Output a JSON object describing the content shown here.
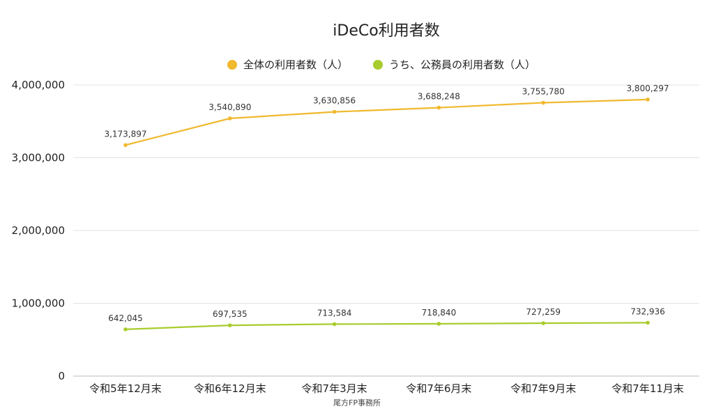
{
  "chart_data": {
    "type": "line",
    "title": "iDeCo利用者数",
    "categories": [
      "令和5年12月末",
      "令和6年12月末",
      "令和7年3月末",
      "令和7年6月末",
      "令和7年9月末",
      "令和7年11月末"
    ],
    "series": [
      {
        "name": "全体の利用者数（人）",
        "color": "#f0b92e",
        "values": [
          3173897,
          3540890,
          3630856,
          3688248,
          3755780,
          3800297
        ],
        "labels": [
          "3,173,897",
          "3,540,890",
          "3,630,856",
          "3,688,248",
          "3,755,780",
          "3,800,297"
        ]
      },
      {
        "name": "うち、公務員の利用者数（人）",
        "color": "#a8cc2c",
        "values": [
          642045,
          697535,
          713584,
          718840,
          727259,
          732936
        ],
        "labels": [
          "642,045",
          "697,535",
          "713,584",
          "718,840",
          "727,259",
          "732,936"
        ]
      }
    ],
    "ylim": [
      0,
      4000000
    ],
    "yticks": [
      0,
      1000000,
      2000000,
      3000000,
      4000000
    ],
    "ytick_labels": [
      "0",
      "1,000,000",
      "2,000,000",
      "3,000,000",
      "4,000,000"
    ],
    "xlabel": "",
    "ylabel": "",
    "grid": true,
    "legend_position": "top-center",
    "credit": "尾方FP事務所"
  }
}
